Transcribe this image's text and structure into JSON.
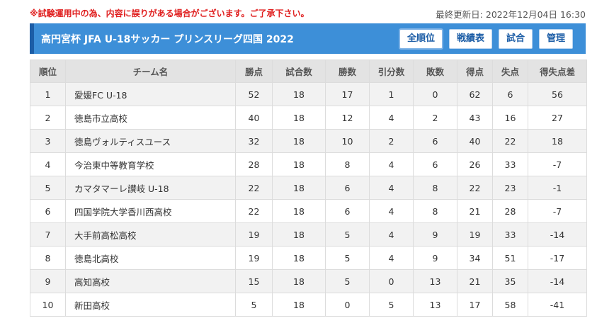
{
  "notice": "※試験運用中の為、内容に誤りがある場合がございます。ご了承下さい。",
  "updated": {
    "label": "最終更新日:",
    "value": "2022年12月04日 16:30"
  },
  "header": {
    "title": "高円宮杯 JFA U-18サッカー プリンスリーグ四国 2022",
    "accent_color": "#3d8fd8",
    "nav": [
      {
        "label": "全順位",
        "active": true
      },
      {
        "label": "戦績表",
        "active": false
      },
      {
        "label": "試合",
        "active": false
      },
      {
        "label": "管理",
        "active": false
      }
    ]
  },
  "table": {
    "columns": [
      "順位",
      "チーム名",
      "勝点",
      "試合数",
      "勝数",
      "引分数",
      "敗数",
      "得点",
      "失点",
      "得失点差"
    ],
    "rows": [
      [
        "1",
        "愛媛FC U-18",
        "52",
        "18",
        "17",
        "1",
        "0",
        "62",
        "6",
        "56"
      ],
      [
        "2",
        "徳島市立高校",
        "40",
        "18",
        "12",
        "4",
        "2",
        "43",
        "16",
        "27"
      ],
      [
        "3",
        "徳島ヴォルティスユース",
        "32",
        "18",
        "10",
        "2",
        "6",
        "40",
        "22",
        "18"
      ],
      [
        "4",
        "今治東中等教育学校",
        "28",
        "18",
        "8",
        "4",
        "6",
        "26",
        "33",
        "-7"
      ],
      [
        "5",
        "カマタマーレ讃岐 U-18",
        "22",
        "18",
        "6",
        "4",
        "8",
        "22",
        "23",
        "-1"
      ],
      [
        "6",
        "四国学院大学香川西高校",
        "22",
        "18",
        "6",
        "4",
        "8",
        "21",
        "28",
        "-7"
      ],
      [
        "7",
        "大手前高松高校",
        "19",
        "18",
        "5",
        "4",
        "9",
        "19",
        "33",
        "-14"
      ],
      [
        "8",
        "徳島北高校",
        "19",
        "18",
        "5",
        "4",
        "9",
        "34",
        "51",
        "-17"
      ],
      [
        "9",
        "高知高校",
        "15",
        "18",
        "5",
        "0",
        "13",
        "21",
        "35",
        "-14"
      ],
      [
        "10",
        "新田高校",
        "5",
        "18",
        "0",
        "5",
        "13",
        "17",
        "58",
        "-41"
      ]
    ]
  }
}
